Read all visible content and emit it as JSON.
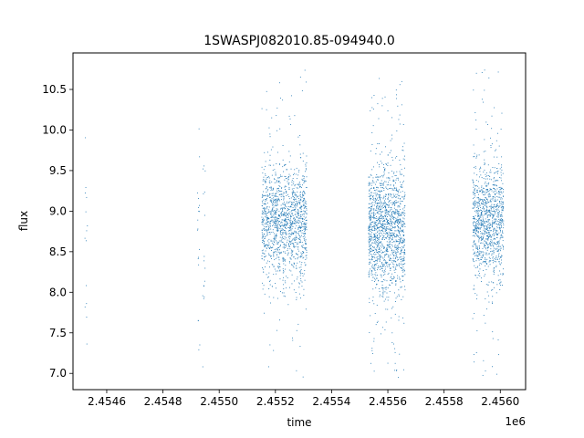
{
  "chart_data": {
    "type": "scatter",
    "title": "1SWASPJ082010.85-094940.0",
    "xlabel": "time",
    "ylabel": "flux",
    "x_offset_label": "1e6",
    "xlim": [
      2.45448,
      2.45609
    ],
    "ylim": [
      6.8,
      10.95
    ],
    "x_ticks": [
      2.4546,
      2.4548,
      2.455,
      2.4552,
      2.4554,
      2.4556,
      2.4558,
      2.456
    ],
    "x_tick_labels": [
      "2.4546",
      "2.4548",
      "2.4550",
      "2.4552",
      "2.4554",
      "2.4556",
      "2.4558",
      "2.4560"
    ],
    "y_ticks": [
      7.0,
      7.5,
      8.0,
      8.5,
      9.0,
      9.5,
      10.0,
      10.5
    ],
    "y_tick_labels": [
      "7.0",
      "7.5",
      "8.0",
      "8.5",
      "9.0",
      "9.5",
      "10.0",
      "10.5"
    ],
    "grid": false,
    "marker_color": "#1f77b4",
    "clusters": [
      {
        "x_range": [
          2.45452,
          2.45453
        ],
        "center": 8.8,
        "spread": 0.9,
        "n": 14
      },
      {
        "x_range": [
          2.45492,
          2.45493
        ],
        "center": 8.6,
        "spread": 0.7,
        "n": 20
      },
      {
        "x_range": [
          2.45494,
          2.45495
        ],
        "center": 8.5,
        "spread": 0.7,
        "n": 16
      },
      {
        "x_range": [
          2.45515,
          2.45531
        ],
        "center": 8.85,
        "spread": 0.35,
        "n": 1400
      },
      {
        "x_range": [
          2.45553,
          2.45566
        ],
        "center": 8.75,
        "spread": 0.4,
        "n": 1500
      },
      {
        "x_range": [
          2.4559,
          2.45601
        ],
        "center": 8.85,
        "spread": 0.35,
        "n": 1100
      }
    ]
  }
}
